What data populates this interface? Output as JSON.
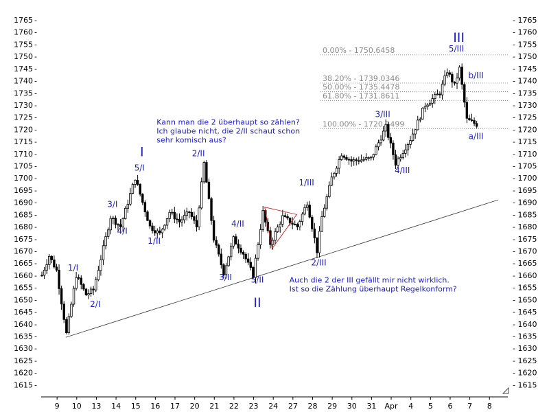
{
  "chart_data": {
    "type": "candlestick",
    "ylim": [
      1613,
      1768
    ],
    "yticks": [
      1615,
      1620,
      1625,
      1630,
      1635,
      1640,
      1645,
      1650,
      1655,
      1660,
      1665,
      1670,
      1675,
      1680,
      1685,
      1690,
      1695,
      1700,
      1705,
      1710,
      1715,
      1720,
      1725,
      1730,
      1735,
      1740,
      1745,
      1750,
      1755,
      1760,
      1765
    ],
    "xticks": [
      {
        "label": "9",
        "idx": 2
      },
      {
        "label": "10",
        "idx": 10
      },
      {
        "label": "13",
        "idx": 18
      },
      {
        "label": "14",
        "idx": 26
      },
      {
        "label": "15",
        "idx": 34
      },
      {
        "label": "16",
        "idx": 42
      },
      {
        "label": "17",
        "idx": 50
      },
      {
        "label": "20",
        "idx": 58
      },
      {
        "label": "21",
        "idx": 66
      },
      {
        "label": "22",
        "idx": 74
      },
      {
        "label": "23",
        "idx": 82
      },
      {
        "label": "24",
        "idx": 90
      },
      {
        "label": "27",
        "idx": 98
      },
      {
        "label": "28",
        "idx": 106
      },
      {
        "label": "29",
        "idx": 114
      },
      {
        "label": "30",
        "idx": 122
      },
      {
        "label": "31",
        "idx": 130
      },
      {
        "label": "Apr",
        "idx": 138
      },
      {
        "label": "4",
        "idx": 146
      },
      {
        "label": "5",
        "idx": 154
      },
      {
        "label": "6",
        "idx": 162
      },
      {
        "label": "7",
        "idx": 170
      },
      {
        "label": "8",
        "idx": 178
      }
    ],
    "anchors": [
      {
        "idx": 0,
        "v": 1660
      },
      {
        "idx": 3,
        "v": 1668
      },
      {
        "idx": 6,
        "v": 1662
      },
      {
        "idx": 10,
        "v": 1636
      },
      {
        "idx": 14,
        "v": 1660
      },
      {
        "idx": 18,
        "v": 1652
      },
      {
        "idx": 21,
        "v": 1654
      },
      {
        "idx": 28,
        "v": 1684
      },
      {
        "idx": 32,
        "v": 1680
      },
      {
        "idx": 38,
        "v": 1700
      },
      {
        "idx": 44,
        "v": 1680
      },
      {
        "idx": 48,
        "v": 1677
      },
      {
        "idx": 52,
        "v": 1686
      },
      {
        "idx": 56,
        "v": 1682
      },
      {
        "idx": 60,
        "v": 1686
      },
      {
        "idx": 63,
        "v": 1680
      },
      {
        "idx": 66,
        "v": 1706
      },
      {
        "idx": 70,
        "v": 1675
      },
      {
        "idx": 74,
        "v": 1661
      },
      {
        "idx": 78,
        "v": 1675
      },
      {
        "idx": 82,
        "v": 1669
      },
      {
        "idx": 86,
        "v": 1660
      },
      {
        "idx": 90,
        "v": 1686
      },
      {
        "idx": 93,
        "v": 1673
      },
      {
        "idx": 98,
        "v": 1684
      },
      {
        "idx": 104,
        "v": 1680
      },
      {
        "idx": 108,
        "v": 1690
      },
      {
        "idx": 112,
        "v": 1670
      },
      {
        "idx": 114,
        "v": 1684
      },
      {
        "idx": 118,
        "v": 1700
      },
      {
        "idx": 122,
        "v": 1710
      },
      {
        "idx": 126,
        "v": 1707
      },
      {
        "idx": 134,
        "v": 1708
      },
      {
        "idx": 140,
        "v": 1721
      },
      {
        "idx": 144,
        "v": 1706
      },
      {
        "idx": 150,
        "v": 1716
      },
      {
        "idx": 156,
        "v": 1730
      },
      {
        "idx": 162,
        "v": 1735
      },
      {
        "idx": 165,
        "v": 1744
      },
      {
        "idx": 168,
        "v": 1738
      },
      {
        "idx": 170,
        "v": 1745
      },
      {
        "idx": 173,
        "v": 1724
      },
      {
        "idx": 177,
        "v": 1722
      }
    ],
    "trendline": {
      "from": {
        "idx": 10,
        "v": 1634.5
      },
      "to": {
        "idx": 186,
        "v": 1691
      }
    },
    "triangle": [
      {
        "idx": 91,
        "v": 1688
      },
      {
        "idx": 104,
        "v": 1685
      },
      {
        "idx": 94,
        "v": 1671
      }
    ],
    "fibonacci": [
      {
        "label": "0.00% - 1750.6458",
        "value": 1750.6458
      },
      {
        "label": "38.20% - 1739.0346",
        "value": 1739.0346
      },
      {
        "label": "50.00% - 1735.4478",
        "value": 1735.4478
      },
      {
        "label": "61.80% - 1731.8611",
        "value": 1731.8611
      },
      {
        "label": "100.00% - 1720.2499",
        "value": 1720.2499
      }
    ],
    "wave_labels": [
      {
        "text": "1/I",
        "idx": 13,
        "v": 1662
      },
      {
        "text": "2/I",
        "idx": 22,
        "v": 1647
      },
      {
        "text": "3/I",
        "idx": 29,
        "v": 1688
      },
      {
        "text": "4/I",
        "idx": 33,
        "v": 1677
      },
      {
        "text": "5/I",
        "idx": 40,
        "v": 1703
      },
      {
        "text": "1/II",
        "idx": 46,
        "v": 1673
      },
      {
        "text": "2/II",
        "idx": 64,
        "v": 1709
      },
      {
        "text": "3/II",
        "idx": 75,
        "v": 1658
      },
      {
        "text": "4/II",
        "idx": 80,
        "v": 1680
      },
      {
        "text": "5/II",
        "idx": 88,
        "v": 1657
      },
      {
        "text": "1/III",
        "idx": 108,
        "v": 1697
      },
      {
        "text": "2/III",
        "idx": 113,
        "v": 1664
      },
      {
        "text": "3/III",
        "idx": 139,
        "v": 1725
      },
      {
        "text": "4/III",
        "idx": 147,
        "v": 1702
      },
      {
        "text": "5/III",
        "idx": 169,
        "v": 1752
      },
      {
        "text": "b/III",
        "idx": 177,
        "v": 1741
      },
      {
        "text": "a/III",
        "idx": 177,
        "v": 1716
      }
    ],
    "degree_labels": [
      {
        "text": "I",
        "idx": 41,
        "v": 1709
      },
      {
        "text": "II",
        "idx": 88,
        "v": 1647
      },
      {
        "text": "III",
        "idx": 170,
        "v": 1756
      }
    ],
    "annotations": [
      {
        "lines": [
          "Kann man die 2 überhaupt so zählen?",
          "Ich glaube nicht, die 2/II schaut schon",
          "sehr komisch aus?"
        ],
        "idx": 47,
        "v": 1722
      },
      {
        "lines": [
          "Auch die 2 der III gefällt mir nicht wirklich.",
          "Ist so die Zählung überhaupt Regelkonform?"
        ],
        "idx": 101,
        "v": 1657
      }
    ]
  }
}
